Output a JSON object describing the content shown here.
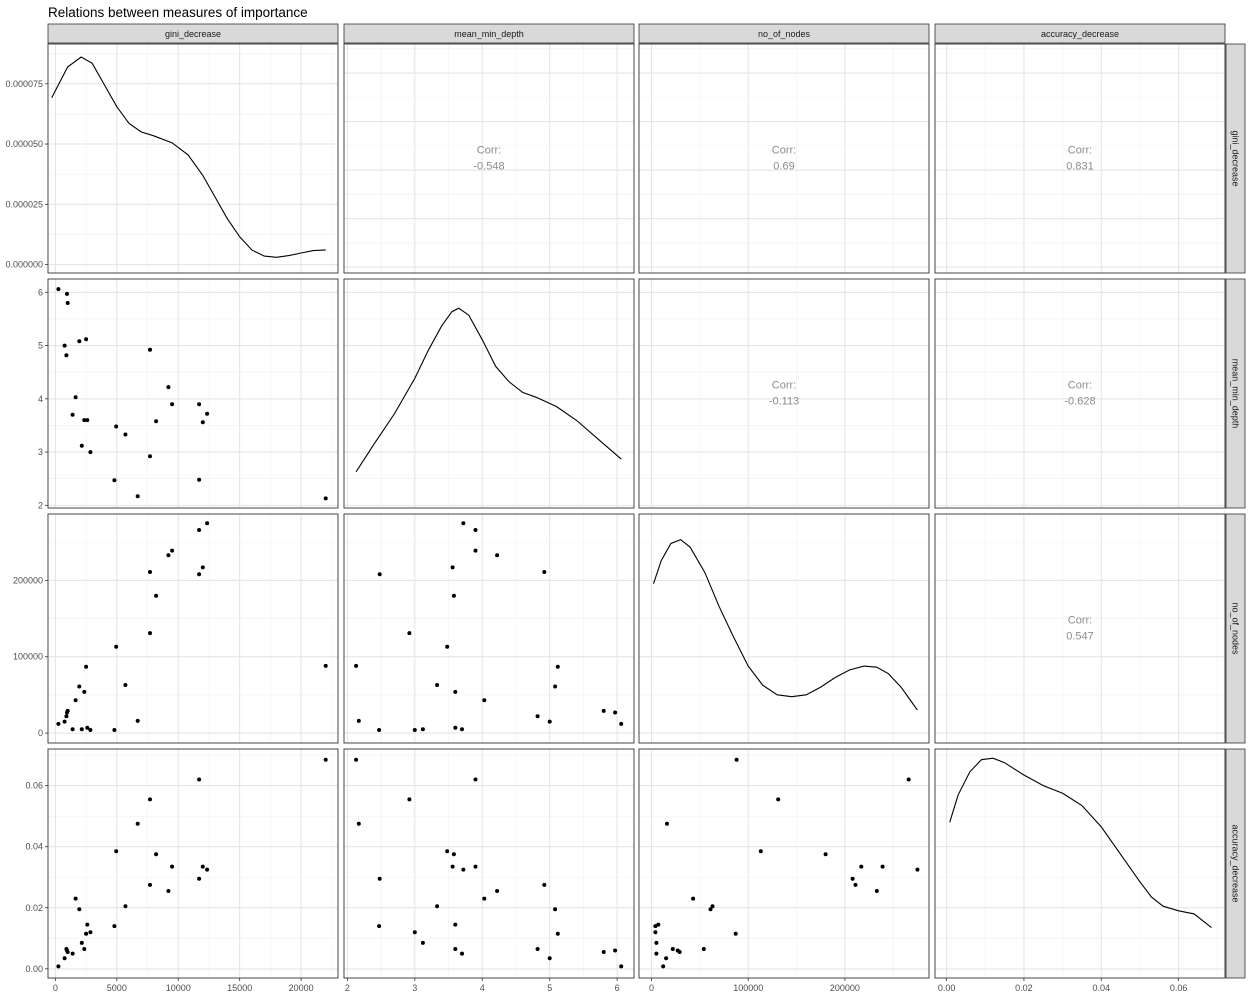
{
  "chart_data": {
    "type": "scatter",
    "subtype": "pairs-plot",
    "title": "Relations between measures of importance",
    "variables": [
      "gini_decrease",
      "mean_min_depth",
      "no_of_nodes",
      "accuracy_decrease"
    ],
    "axis_ticks": {
      "gini_decrease": {
        "range": [
          -600,
          23000
        ],
        "ticks": [
          0,
          5000,
          10000,
          15000,
          20000
        ],
        "labels": [
          "0",
          "5000",
          "10000",
          "15000",
          "20000"
        ]
      },
      "mean_min_depth": {
        "range": [
          1.95,
          6.25
        ],
        "ticks": [
          2,
          3,
          4,
          5,
          6
        ],
        "labels": [
          "2",
          "3",
          "4",
          "5",
          "6"
        ]
      },
      "no_of_nodes": {
        "range": [
          -13000,
          287000
        ],
        "ticks": [
          0,
          100000,
          200000
        ],
        "labels": [
          "0",
          "100000",
          "200000"
        ]
      },
      "accuracy_decrease": {
        "range": [
          -0.003,
          0.072
        ],
        "ticks": [
          0,
          0.02,
          0.04,
          0.06
        ],
        "labels": [
          "0.00",
          "0.02",
          "0.04",
          "0.06"
        ]
      }
    },
    "density_y_axis": {
      "range": [
        -3.5e-06,
        9.15e-05
      ],
      "ticks": [
        0,
        2.5e-05,
        5e-05,
        7.5e-05
      ],
      "labels": [
        "0.000000",
        "0.000025",
        "0.000050",
        "0.000075"
      ]
    },
    "points": [
      {
        "gini_decrease": 250,
        "mean_min_depth": 6.06,
        "no_of_nodes": 12000,
        "accuracy_decrease": 0.0008
      },
      {
        "gini_decrease": 750,
        "mean_min_depth": 5.0,
        "no_of_nodes": 15000,
        "accuracy_decrease": 0.0035
      },
      {
        "gini_decrease": 900,
        "mean_min_depth": 4.82,
        "no_of_nodes": 22000,
        "accuracy_decrease": 0.0065
      },
      {
        "gini_decrease": 950,
        "mean_min_depth": 5.97,
        "no_of_nodes": 27000,
        "accuracy_decrease": 0.006
      },
      {
        "gini_decrease": 1000,
        "mean_min_depth": 5.8,
        "no_of_nodes": 29000,
        "accuracy_decrease": 0.0055
      },
      {
        "gini_decrease": 1400,
        "mean_min_depth": 3.7,
        "no_of_nodes": 5000,
        "accuracy_decrease": 0.005
      },
      {
        "gini_decrease": 1650,
        "mean_min_depth": 4.03,
        "no_of_nodes": 43000,
        "accuracy_decrease": 0.023
      },
      {
        "gini_decrease": 1950,
        "mean_min_depth": 5.08,
        "no_of_nodes": 61000,
        "accuracy_decrease": 0.0195
      },
      {
        "gini_decrease": 2150,
        "mean_min_depth": 3.12,
        "no_of_nodes": 5000,
        "accuracy_decrease": 0.0085
      },
      {
        "gini_decrease": 2350,
        "mean_min_depth": 3.6,
        "no_of_nodes": 54000,
        "accuracy_decrease": 0.0065
      },
      {
        "gini_decrease": 2500,
        "mean_min_depth": 5.12,
        "no_of_nodes": 87000,
        "accuracy_decrease": 0.0115
      },
      {
        "gini_decrease": 2600,
        "mean_min_depth": 3.6,
        "no_of_nodes": 7000,
        "accuracy_decrease": 0.0145
      },
      {
        "gini_decrease": 2850,
        "mean_min_depth": 3.0,
        "no_of_nodes": 4000,
        "accuracy_decrease": 0.012
      },
      {
        "gini_decrease": 4800,
        "mean_min_depth": 2.47,
        "no_of_nodes": 4000,
        "accuracy_decrease": 0.014
      },
      {
        "gini_decrease": 4950,
        "mean_min_depth": 3.48,
        "no_of_nodes": 113000,
        "accuracy_decrease": 0.0385
      },
      {
        "gini_decrease": 5700,
        "mean_min_depth": 3.33,
        "no_of_nodes": 63000,
        "accuracy_decrease": 0.0205
      },
      {
        "gini_decrease": 6700,
        "mean_min_depth": 2.17,
        "no_of_nodes": 16000,
        "accuracy_decrease": 0.0475
      },
      {
        "gini_decrease": 7700,
        "mean_min_depth": 4.92,
        "no_of_nodes": 211000,
        "accuracy_decrease": 0.0275
      },
      {
        "gini_decrease": 7700,
        "mean_min_depth": 2.92,
        "no_of_nodes": 131000,
        "accuracy_decrease": 0.0555
      },
      {
        "gini_decrease": 8200,
        "mean_min_depth": 3.58,
        "no_of_nodes": 180000,
        "accuracy_decrease": 0.0375
      },
      {
        "gini_decrease": 9200,
        "mean_min_depth": 4.22,
        "no_of_nodes": 233000,
        "accuracy_decrease": 0.0255
      },
      {
        "gini_decrease": 9500,
        "mean_min_depth": 3.9,
        "no_of_nodes": 239000,
        "accuracy_decrease": 0.0335
      },
      {
        "gini_decrease": 11700,
        "mean_min_depth": 3.9,
        "no_of_nodes": 266000,
        "accuracy_decrease": 0.062
      },
      {
        "gini_decrease": 11700,
        "mean_min_depth": 2.48,
        "no_of_nodes": 208000,
        "accuracy_decrease": 0.0295
      },
      {
        "gini_decrease": 12000,
        "mean_min_depth": 3.56,
        "no_of_nodes": 217000,
        "accuracy_decrease": 0.0335
      },
      {
        "gini_decrease": 12350,
        "mean_min_depth": 3.72,
        "no_of_nodes": 275000,
        "accuracy_decrease": 0.0325
      },
      {
        "gini_decrease": 22000,
        "mean_min_depth": 2.13,
        "no_of_nodes": 88000,
        "accuracy_decrease": 0.0685
      }
    ],
    "correlations": [
      {
        "row": "gini_decrease",
        "col": "mean_min_depth",
        "label": "Corr:",
        "value": "-0.548"
      },
      {
        "row": "gini_decrease",
        "col": "no_of_nodes",
        "label": "Corr:",
        "value": "0.69"
      },
      {
        "row": "gini_decrease",
        "col": "accuracy_decrease",
        "label": "Corr:",
        "value": "0.831"
      },
      {
        "row": "mean_min_depth",
        "col": "no_of_nodes",
        "label": "Corr:",
        "value": "-0.113"
      },
      {
        "row": "mean_min_depth",
        "col": "accuracy_decrease",
        "label": "Corr:",
        "value": "-0.628"
      },
      {
        "row": "no_of_nodes",
        "col": "accuracy_decrease",
        "label": "Corr:",
        "value": "0.547"
      }
    ],
    "density_curves": {
      "gini_decrease": [
        [
          -300,
          6.92e-05
        ],
        [
          1000,
          8.2e-05
        ],
        [
          2100,
          8.61e-05
        ],
        [
          3000,
          8.35e-05
        ],
        [
          4000,
          7.45e-05
        ],
        [
          5000,
          6.55e-05
        ],
        [
          6000,
          5.85e-05
        ],
        [
          7000,
          5.5e-05
        ],
        [
          8000,
          5.34e-05
        ],
        [
          9500,
          5.05e-05
        ],
        [
          10800,
          4.55e-05
        ],
        [
          12000,
          3.7e-05
        ],
        [
          13000,
          2.8e-05
        ],
        [
          14000,
          1.9e-05
        ],
        [
          15000,
          1.15e-05
        ],
        [
          16000,
          6e-06
        ],
        [
          17000,
          3.5e-06
        ],
        [
          18000,
          3e-06
        ],
        [
          19000,
          3.7e-06
        ],
        [
          20000,
          4.8e-06
        ],
        [
          21000,
          5.8e-06
        ],
        [
          22000,
          6.1e-06
        ]
      ],
      "mean_min_depth": [
        [
          2.13,
          0.332
        ],
        [
          2.4,
          0.372
        ],
        [
          2.7,
          0.415
        ],
        [
          3.0,
          0.465
        ],
        [
          3.2,
          0.505
        ],
        [
          3.4,
          0.54
        ],
        [
          3.55,
          0.56
        ],
        [
          3.65,
          0.565
        ],
        [
          3.8,
          0.555
        ],
        [
          4.0,
          0.52
        ],
        [
          4.2,
          0.482
        ],
        [
          4.4,
          0.46
        ],
        [
          4.6,
          0.445
        ],
        [
          4.8,
          0.438
        ],
        [
          5.1,
          0.425
        ],
        [
          5.4,
          0.405
        ],
        [
          5.7,
          0.38
        ],
        [
          6.06,
          0.35
        ]
      ],
      "no_of_nodes": [
        [
          2000,
          0.93
        ],
        [
          10000,
          0.99
        ],
        [
          20000,
          1.035
        ],
        [
          30000,
          1.045
        ],
        [
          40000,
          1.025
        ],
        [
          55000,
          0.96
        ],
        [
          70000,
          0.87
        ],
        [
          85000,
          0.79
        ],
        [
          100000,
          0.715
        ],
        [
          115000,
          0.665
        ],
        [
          130000,
          0.64
        ],
        [
          145000,
          0.635
        ],
        [
          160000,
          0.64
        ],
        [
          175000,
          0.66
        ],
        [
          190000,
          0.685
        ],
        [
          205000,
          0.705
        ],
        [
          220000,
          0.715
        ],
        [
          233000,
          0.712
        ],
        [
          245000,
          0.695
        ],
        [
          258000,
          0.66
        ],
        [
          268000,
          0.625
        ],
        [
          275000,
          0.6
        ]
      ],
      "accuracy_decrease": [
        [
          0.0008,
          0.048
        ],
        [
          0.003,
          0.057
        ],
        [
          0.006,
          0.0645
        ],
        [
          0.009,
          0.0685
        ],
        [
          0.012,
          0.069
        ],
        [
          0.015,
          0.0675
        ],
        [
          0.02,
          0.0635
        ],
        [
          0.025,
          0.06
        ],
        [
          0.03,
          0.0575
        ],
        [
          0.035,
          0.0535
        ],
        [
          0.04,
          0.0465
        ],
        [
          0.045,
          0.0375
        ],
        [
          0.05,
          0.0285
        ],
        [
          0.053,
          0.0235
        ],
        [
          0.056,
          0.0205
        ],
        [
          0.06,
          0.019
        ],
        [
          0.064,
          0.018
        ],
        [
          0.0685,
          0.0135
        ]
      ]
    }
  }
}
